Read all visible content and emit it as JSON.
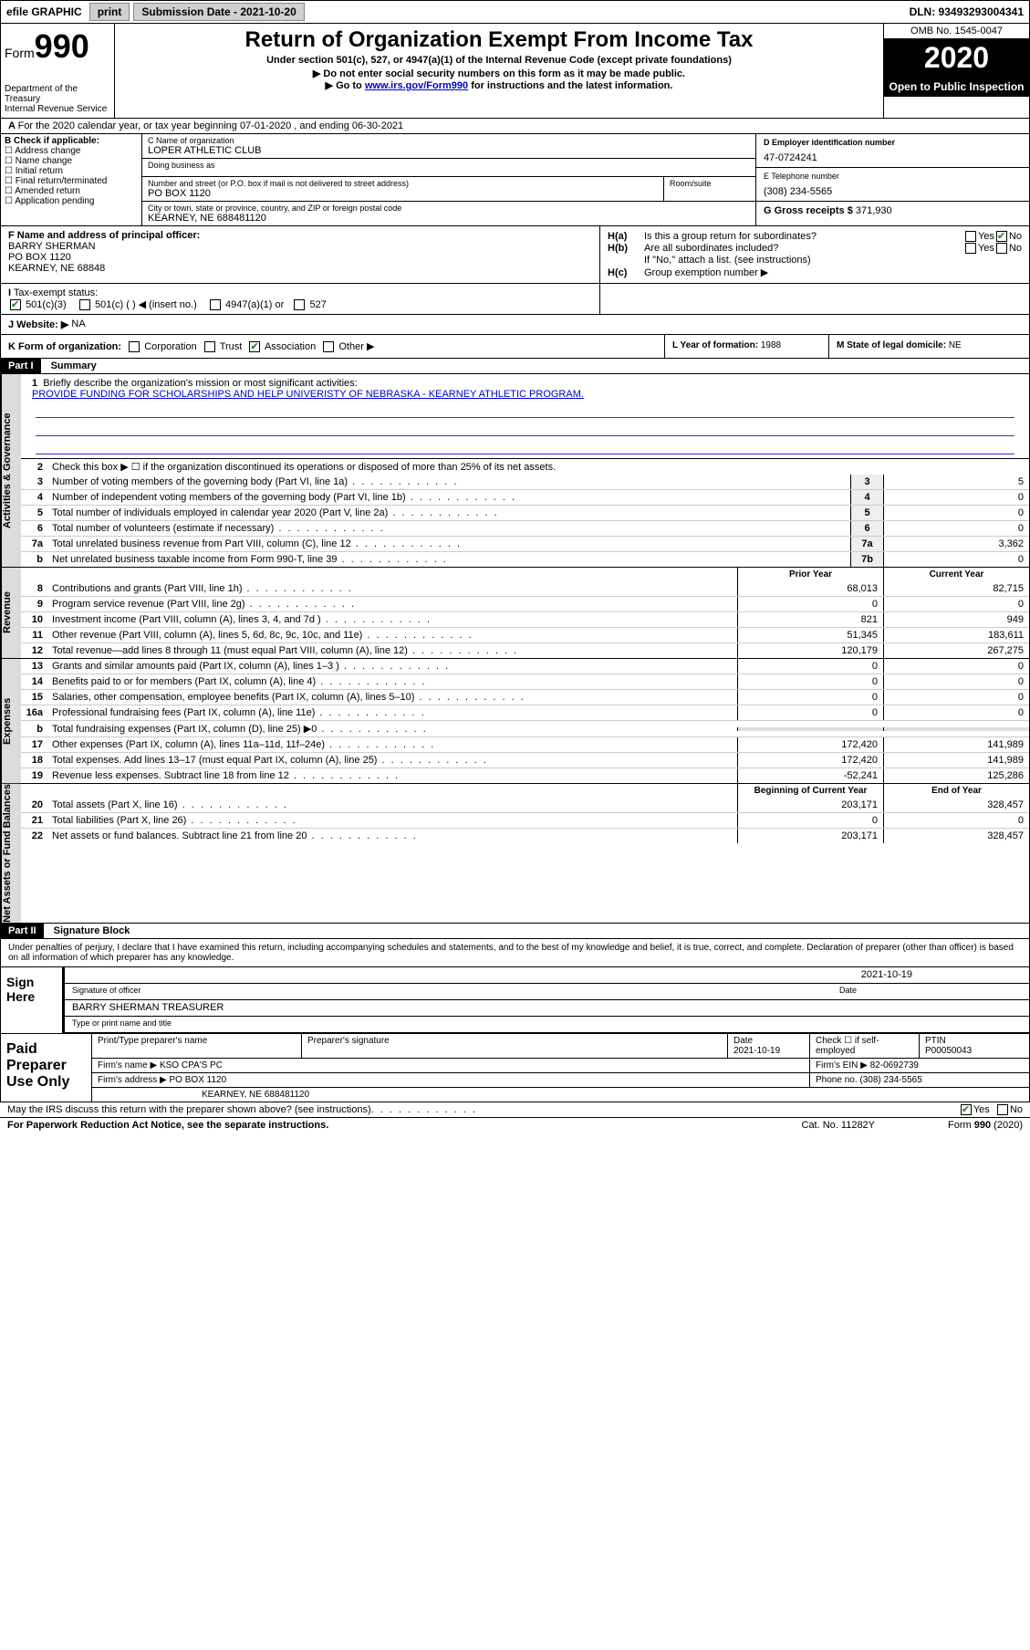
{
  "topbar": {
    "efile": "efile GRAPHIC",
    "print": "print",
    "sub_lbl": "Submission Date - 2021-10-20",
    "dln": "DLN: 93493293004341"
  },
  "header": {
    "form_word": "Form",
    "form_num": "990",
    "dept": "Department of the Treasury",
    "irs": "Internal Revenue Service",
    "title": "Return of Organization Exempt From Income Tax",
    "sub1": "Under section 501(c), 527, or 4947(a)(1) of the Internal Revenue Code (except private foundations)",
    "sub2": "▶ Do not enter social security numbers on this form as it may be made public.",
    "sub3_a": "▶ Go to ",
    "sub3_link": "www.irs.gov/Form990",
    "sub3_b": " for instructions and the latest information.",
    "omb": "OMB No. 1545-0047",
    "year": "2020",
    "open": "Open to Public Inspection"
  },
  "lineA": "For the 2020 calendar year, or tax year beginning 07-01-2020    , and ending 06-30-2021",
  "boxB": {
    "hdr": "B Check if applicable:",
    "opts": [
      "Address change",
      "Name change",
      "Initial return",
      "Final return/terminated",
      "Amended return",
      "Application pending"
    ]
  },
  "boxC": {
    "name_lbl": "C Name of organization",
    "name": "LOPER ATHLETIC CLUB",
    "dba_lbl": "Doing business as",
    "street_lbl": "Number and street (or P.O. box if mail is not delivered to street address)",
    "street": "PO BOX 1120",
    "suite_lbl": "Room/suite",
    "city_lbl": "City or town, state or province, country, and ZIP or foreign postal code",
    "city": "KEARNEY, NE  688481120"
  },
  "boxD": {
    "lbl": "D Employer identification number",
    "val": "47-0724241"
  },
  "boxE": {
    "lbl": "E Telephone number",
    "val": "(308) 234-5565"
  },
  "boxG": {
    "lbl": "G Gross receipts $",
    "val": "371,930"
  },
  "boxF": {
    "lbl": "F  Name and address of principal officer:",
    "line1": "BARRY SHERMAN",
    "line2": "PO BOX 1120",
    "line3": "KEARNEY, NE  68848"
  },
  "boxH": {
    "a_lbl": "H(a)",
    "a_txt": "Is this a group return for subordinates?",
    "b_lbl": "H(b)",
    "b_txt": "Are all subordinates included?",
    "b_note": "If \"No,\" attach a list. (see instructions)",
    "c_lbl": "H(c)",
    "c_txt": "Group exemption number ▶",
    "yes": "Yes",
    "no": "No"
  },
  "status": {
    "lbl": "Tax-exempt status:",
    "opt1": "501(c)(3)",
    "opt2": "501(c) (  ) ◀ (insert no.)",
    "opt3": "4947(a)(1) or",
    "opt4": "527"
  },
  "lineI": "I",
  "lineJ": {
    "lbl": "J   Website: ▶",
    "val": "NA"
  },
  "lineK": {
    "lbl": "K Form of organization:",
    "opts": [
      "Corporation",
      "Trust",
      "Association",
      "Other ▶"
    ],
    "checked_idx": 2
  },
  "lineL": {
    "lbl": "L Year of formation:",
    "val": "1988"
  },
  "lineM": {
    "lbl": "M State of legal domicile:",
    "val": "NE"
  },
  "part1": {
    "hdr": "Part I",
    "title": "Summary",
    "l1_lbl": "1",
    "l1_txt": "Briefly describe the organization's mission or most significant activities:",
    "l1_val": "PROVIDE FUNDING FOR SCHOLARSHIPS AND HELP UNIVERISTY OF NEBRASKA - KEARNEY ATHLETIC PROGRAM.",
    "l2_lbl": "2",
    "l2_txt": "Check this box ▶ ☐  if the organization discontinued its operations or disposed of more than 25% of its net assets.",
    "sidebars": [
      "Activities & Governance",
      "Revenue",
      "Expenses",
      "Net Assets or Fund Balances"
    ],
    "gov_lines": [
      {
        "num": "3",
        "txt": "Number of voting members of the governing body (Part VI, line 1a)",
        "box": "3",
        "val": "5"
      },
      {
        "num": "4",
        "txt": "Number of independent voting members of the governing body (Part VI, line 1b)",
        "box": "4",
        "val": "0"
      },
      {
        "num": "5",
        "txt": "Total number of individuals employed in calendar year 2020 (Part V, line 2a)",
        "box": "5",
        "val": "0"
      },
      {
        "num": "6",
        "txt": "Total number of volunteers (estimate if necessary)",
        "box": "6",
        "val": "0"
      },
      {
        "num": "7a",
        "txt": "Total unrelated business revenue from Part VIII, column (C), line 12",
        "box": "7a",
        "val": "3,362"
      },
      {
        "num": "b",
        "txt": "Net unrelated business taxable income from Form 990-T, line 39",
        "box": "7b",
        "val": "0"
      }
    ],
    "col_hdr_prior": "Prior Year",
    "col_hdr_curr": "Current Year",
    "rev_lines": [
      {
        "num": "8",
        "txt": "Contributions and grants (Part VIII, line 1h)",
        "prior": "68,013",
        "curr": "82,715"
      },
      {
        "num": "9",
        "txt": "Program service revenue (Part VIII, line 2g)",
        "prior": "0",
        "curr": "0"
      },
      {
        "num": "10",
        "txt": "Investment income (Part VIII, column (A), lines 3, 4, and 7d )",
        "prior": "821",
        "curr": "949"
      },
      {
        "num": "11",
        "txt": "Other revenue (Part VIII, column (A), lines 5, 6d, 8c, 9c, 10c, and 11e)",
        "prior": "51,345",
        "curr": "183,611"
      },
      {
        "num": "12",
        "txt": "Total revenue—add lines 8 through 11 (must equal Part VIII, column (A), line 12)",
        "prior": "120,179",
        "curr": "267,275"
      }
    ],
    "exp_lines": [
      {
        "num": "13",
        "txt": "Grants and similar amounts paid (Part IX, column (A), lines 1–3 )",
        "prior": "0",
        "curr": "0"
      },
      {
        "num": "14",
        "txt": "Benefits paid to or for members (Part IX, column (A), line 4)",
        "prior": "0",
        "curr": "0"
      },
      {
        "num": "15",
        "txt": "Salaries, other compensation, employee benefits (Part IX, column (A), lines 5–10)",
        "prior": "0",
        "curr": "0"
      },
      {
        "num": "16a",
        "txt": "Professional fundraising fees (Part IX, column (A), line 11e)",
        "prior": "0",
        "curr": "0"
      },
      {
        "num": "b",
        "txt": "Total fundraising expenses (Part IX, column (D), line 25) ▶0",
        "prior": "",
        "curr": ""
      },
      {
        "num": "17",
        "txt": "Other expenses (Part IX, column (A), lines 11a–11d, 11f–24e)",
        "prior": "172,420",
        "curr": "141,989"
      },
      {
        "num": "18",
        "txt": "Total expenses. Add lines 13–17 (must equal Part IX, column (A), line 25)",
        "prior": "172,420",
        "curr": "141,989"
      },
      {
        "num": "19",
        "txt": "Revenue less expenses. Subtract line 18 from line 12",
        "prior": "-52,241",
        "curr": "125,286"
      }
    ],
    "col_hdr_begin": "Beginning of Current Year",
    "col_hdr_end": "End of Year",
    "net_lines": [
      {
        "num": "20",
        "txt": "Total assets (Part X, line 16)",
        "prior": "203,171",
        "curr": "328,457"
      },
      {
        "num": "21",
        "txt": "Total liabilities (Part X, line 26)",
        "prior": "0",
        "curr": "0"
      },
      {
        "num": "22",
        "txt": "Net assets or fund balances. Subtract line 21 from line 20",
        "prior": "203,171",
        "curr": "328,457"
      }
    ]
  },
  "part2": {
    "hdr": "Part II",
    "title": "Signature Block",
    "decl": "Under penalties of perjury, I declare that I have examined this return, including accompanying schedules and statements, and to the best of my knowledge and belief, it is true, correct, and complete. Declaration of preparer (other than officer) is based on all information of which preparer has any knowledge."
  },
  "sign": {
    "lbl": "Sign Here",
    "sig_lbl": "Signature of officer",
    "date_lbl": "Date",
    "date": "2021-10-19",
    "name": "BARRY SHERMAN  TREASURER",
    "name_lbl": "Type or print name and title"
  },
  "paid": {
    "lbl": "Paid Preparer Use Only",
    "h1": "Print/Type preparer's name",
    "h2": "Preparer's signature",
    "h3": "Date",
    "h3v": "2021-10-19",
    "h4": "Check ☐  if self-employed",
    "h5": "PTIN",
    "h5v": "P00050043",
    "firm_lbl": "Firm's name    ▶",
    "firm": "KSO CPA'S PC",
    "ein_lbl": "Firm's EIN ▶",
    "ein": "82-0692739",
    "addr_lbl": "Firm's address ▶",
    "addr1": "PO BOX 1120",
    "addr2": "KEARNEY, NE  688481120",
    "phone_lbl": "Phone no.",
    "phone": "(308) 234-5565"
  },
  "discuss": {
    "txt": "May the IRS discuss this return with the preparer shown above? (see instructions)",
    "yes": "Yes",
    "no": "No"
  },
  "footer": {
    "left": "For Paperwork Reduction Act Notice, see the separate instructions.",
    "mid": "Cat. No. 11282Y",
    "right": "Form 990 (2020)"
  }
}
